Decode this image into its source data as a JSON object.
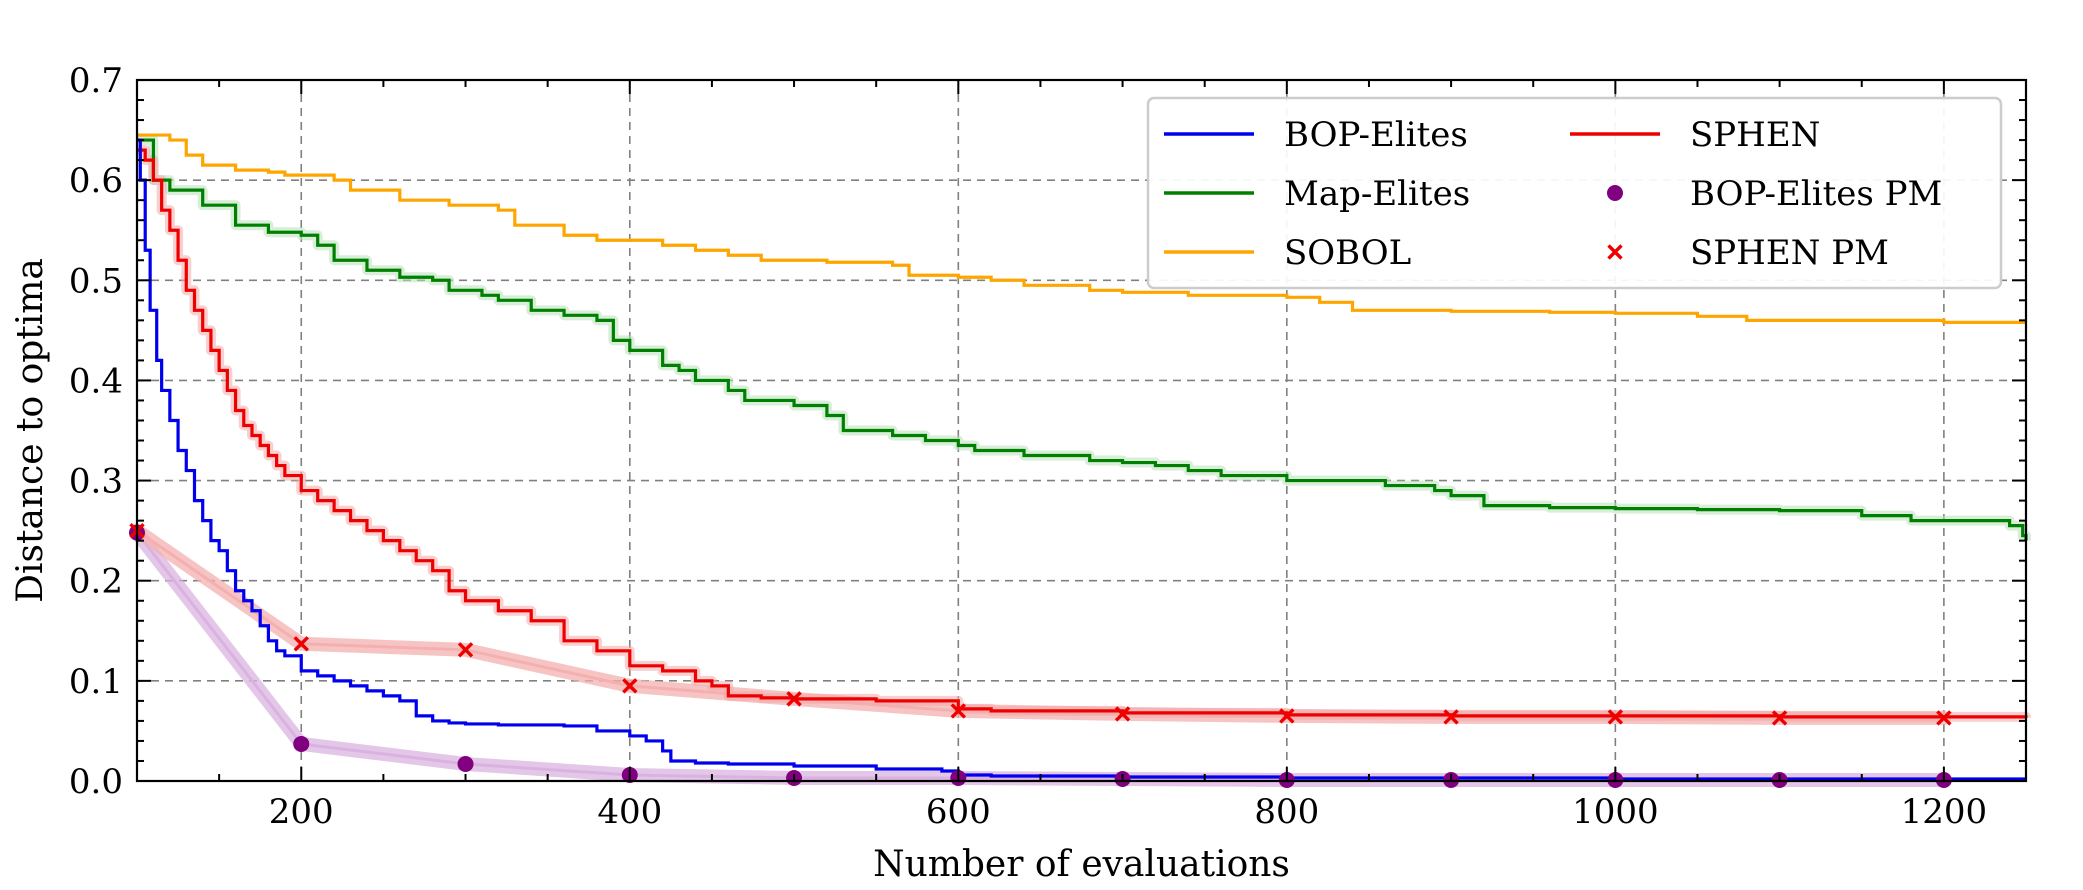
{
  "chart_data": {
    "type": "line",
    "title": "",
    "xlabel": "Number of evaluations",
    "ylabel": "Distance to optima",
    "xlim": [
      100,
      1250
    ],
    "ylim": [
      0.0,
      0.7
    ],
    "x_ticks": [
      200,
      400,
      600,
      800,
      1000,
      1200
    ],
    "y_ticks": [
      0.0,
      0.1,
      0.2,
      0.3,
      0.4,
      0.5,
      0.6,
      0.7
    ],
    "x_tick_labels": [
      "200",
      "400",
      "600",
      "800",
      "1000",
      "1200"
    ],
    "y_tick_labels": [
      "0.0",
      "0.1",
      "0.2",
      "0.3",
      "0.4",
      "0.5",
      "0.6",
      "0.7"
    ],
    "grid": true,
    "legend_position": "top-right",
    "series": [
      {
        "name": "BOP-Elites",
        "color": "#0000ee",
        "kind": "step",
        "band_color": "",
        "points": [
          [
            100,
            0.64
          ],
          [
            102,
            0.6
          ],
          [
            105,
            0.53
          ],
          [
            108,
            0.47
          ],
          [
            112,
            0.42
          ],
          [
            115,
            0.39
          ],
          [
            120,
            0.36
          ],
          [
            125,
            0.33
          ],
          [
            130,
            0.31
          ],
          [
            135,
            0.28
          ],
          [
            140,
            0.26
          ],
          [
            145,
            0.24
          ],
          [
            150,
            0.23
          ],
          [
            155,
            0.21
          ],
          [
            160,
            0.19
          ],
          [
            165,
            0.18
          ],
          [
            170,
            0.17
          ],
          [
            175,
            0.155
          ],
          [
            180,
            0.14
          ],
          [
            185,
            0.13
          ],
          [
            190,
            0.125
          ],
          [
            200,
            0.11
          ],
          [
            210,
            0.105
          ],
          [
            220,
            0.1
          ],
          [
            230,
            0.095
          ],
          [
            240,
            0.09
          ],
          [
            250,
            0.085
          ],
          [
            260,
            0.08
          ],
          [
            270,
            0.065
          ],
          [
            280,
            0.06
          ],
          [
            290,
            0.058
          ],
          [
            300,
            0.057
          ],
          [
            320,
            0.056
          ],
          [
            340,
            0.056
          ],
          [
            360,
            0.055
          ],
          [
            380,
            0.05
          ],
          [
            400,
            0.045
          ],
          [
            410,
            0.04
          ],
          [
            420,
            0.03
          ],
          [
            425,
            0.02
          ],
          [
            440,
            0.018
          ],
          [
            460,
            0.017
          ],
          [
            500,
            0.015
          ],
          [
            550,
            0.012
          ],
          [
            590,
            0.01
          ],
          [
            600,
            0.006
          ],
          [
            620,
            0.005
          ],
          [
            700,
            0.004
          ],
          [
            800,
            0.003
          ],
          [
            1000,
            0.002
          ],
          [
            1250,
            0.002
          ]
        ]
      },
      {
        "name": "Map-Elites",
        "color": "#008000",
        "kind": "step",
        "band_color": "#b8e0b8",
        "points": [
          [
            100,
            0.64
          ],
          [
            110,
            0.6
          ],
          [
            120,
            0.59
          ],
          [
            140,
            0.575
          ],
          [
            160,
            0.555
          ],
          [
            180,
            0.548
          ],
          [
            200,
            0.545
          ],
          [
            210,
            0.535
          ],
          [
            220,
            0.52
          ],
          [
            240,
            0.51
          ],
          [
            260,
            0.503
          ],
          [
            280,
            0.5
          ],
          [
            290,
            0.49
          ],
          [
            310,
            0.485
          ],
          [
            320,
            0.48
          ],
          [
            340,
            0.47
          ],
          [
            360,
            0.465
          ],
          [
            380,
            0.46
          ],
          [
            390,
            0.44
          ],
          [
            400,
            0.43
          ],
          [
            420,
            0.415
          ],
          [
            430,
            0.41
          ],
          [
            440,
            0.4
          ],
          [
            460,
            0.39
          ],
          [
            470,
            0.38
          ],
          [
            500,
            0.375
          ],
          [
            520,
            0.365
          ],
          [
            530,
            0.35
          ],
          [
            560,
            0.345
          ],
          [
            580,
            0.34
          ],
          [
            600,
            0.335
          ],
          [
            610,
            0.33
          ],
          [
            640,
            0.325
          ],
          [
            680,
            0.32
          ],
          [
            700,
            0.318
          ],
          [
            720,
            0.315
          ],
          [
            740,
            0.31
          ],
          [
            760,
            0.305
          ],
          [
            800,
            0.3
          ],
          [
            860,
            0.295
          ],
          [
            890,
            0.29
          ],
          [
            900,
            0.285
          ],
          [
            920,
            0.275
          ],
          [
            960,
            0.273
          ],
          [
            1000,
            0.272
          ],
          [
            1050,
            0.271
          ],
          [
            1100,
            0.27
          ],
          [
            1150,
            0.265
          ],
          [
            1180,
            0.26
          ],
          [
            1240,
            0.255
          ],
          [
            1248,
            0.245
          ],
          [
            1250,
            0.24
          ]
        ]
      },
      {
        "name": "SOBOL",
        "color": "#ffa500",
        "kind": "step",
        "band_color": "",
        "points": [
          [
            100,
            0.645
          ],
          [
            120,
            0.64
          ],
          [
            130,
            0.625
          ],
          [
            140,
            0.615
          ],
          [
            160,
            0.61
          ],
          [
            180,
            0.608
          ],
          [
            190,
            0.605
          ],
          [
            220,
            0.6
          ],
          [
            230,
            0.59
          ],
          [
            260,
            0.58
          ],
          [
            290,
            0.575
          ],
          [
            320,
            0.57
          ],
          [
            330,
            0.555
          ],
          [
            360,
            0.545
          ],
          [
            380,
            0.54
          ],
          [
            420,
            0.535
          ],
          [
            440,
            0.53
          ],
          [
            460,
            0.525
          ],
          [
            480,
            0.52
          ],
          [
            520,
            0.518
          ],
          [
            560,
            0.515
          ],
          [
            570,
            0.505
          ],
          [
            600,
            0.503
          ],
          [
            620,
            0.5
          ],
          [
            640,
            0.495
          ],
          [
            680,
            0.49
          ],
          [
            700,
            0.488
          ],
          [
            740,
            0.485
          ],
          [
            800,
            0.483
          ],
          [
            820,
            0.478
          ],
          [
            840,
            0.47
          ],
          [
            900,
            0.469
          ],
          [
            960,
            0.468
          ],
          [
            1000,
            0.467
          ],
          [
            1050,
            0.464
          ],
          [
            1080,
            0.46
          ],
          [
            1150,
            0.46
          ],
          [
            1200,
            0.458
          ],
          [
            1250,
            0.458
          ]
        ]
      },
      {
        "name": "SPHEN",
        "color": "#ee0000",
        "kind": "step",
        "band_color": "#f4a8a8",
        "points": [
          [
            100,
            0.63
          ],
          [
            105,
            0.62
          ],
          [
            110,
            0.6
          ],
          [
            115,
            0.57
          ],
          [
            120,
            0.55
          ],
          [
            125,
            0.52
          ],
          [
            130,
            0.49
          ],
          [
            135,
            0.47
          ],
          [
            140,
            0.45
          ],
          [
            145,
            0.43
          ],
          [
            150,
            0.41
          ],
          [
            155,
            0.39
          ],
          [
            160,
            0.37
          ],
          [
            165,
            0.355
          ],
          [
            170,
            0.345
          ],
          [
            175,
            0.335
          ],
          [
            180,
            0.325
          ],
          [
            185,
            0.315
          ],
          [
            190,
            0.305
          ],
          [
            200,
            0.29
          ],
          [
            210,
            0.28
          ],
          [
            220,
            0.27
          ],
          [
            230,
            0.26
          ],
          [
            240,
            0.25
          ],
          [
            250,
            0.24
          ],
          [
            260,
            0.23
          ],
          [
            270,
            0.22
          ],
          [
            280,
            0.21
          ],
          [
            290,
            0.19
          ],
          [
            300,
            0.18
          ],
          [
            320,
            0.17
          ],
          [
            340,
            0.16
          ],
          [
            360,
            0.14
          ],
          [
            380,
            0.13
          ],
          [
            400,
            0.115
          ],
          [
            420,
            0.11
          ],
          [
            440,
            0.1
          ],
          [
            450,
            0.095
          ],
          [
            460,
            0.085
          ],
          [
            480,
            0.083
          ],
          [
            500,
            0.082
          ],
          [
            550,
            0.08
          ],
          [
            600,
            0.072
          ],
          [
            620,
            0.07
          ],
          [
            700,
            0.068
          ],
          [
            800,
            0.066
          ],
          [
            900,
            0.065
          ],
          [
            1000,
            0.065
          ],
          [
            1100,
            0.064
          ],
          [
            1200,
            0.064
          ],
          [
            1250,
            0.063
          ]
        ]
      },
      {
        "name": "BOP-Elites PM",
        "color": "#800080",
        "kind": "markers-circle",
        "band_color": "#d9b3e0",
        "points": [
          [
            100,
            0.248
          ],
          [
            200,
            0.037
          ],
          [
            300,
            0.017
          ],
          [
            400,
            0.006
          ],
          [
            500,
            0.003
          ],
          [
            600,
            0.003
          ],
          [
            700,
            0.002
          ],
          [
            800,
            0.001
          ],
          [
            900,
            0.001
          ],
          [
            1000,
            0.001
          ],
          [
            1100,
            0.001
          ],
          [
            1200,
            0.001
          ]
        ]
      },
      {
        "name": "SPHEN PM",
        "color": "#ee0000",
        "kind": "markers-x",
        "band_color": "#f4b0b0",
        "points": [
          [
            100,
            0.25
          ],
          [
            200,
            0.137
          ],
          [
            300,
            0.131
          ],
          [
            400,
            0.095
          ],
          [
            500,
            0.082
          ],
          [
            600,
            0.07
          ],
          [
            700,
            0.067
          ],
          [
            800,
            0.065
          ],
          [
            900,
            0.064
          ],
          [
            1000,
            0.064
          ],
          [
            1100,
            0.063
          ],
          [
            1200,
            0.063
          ]
        ]
      }
    ]
  }
}
